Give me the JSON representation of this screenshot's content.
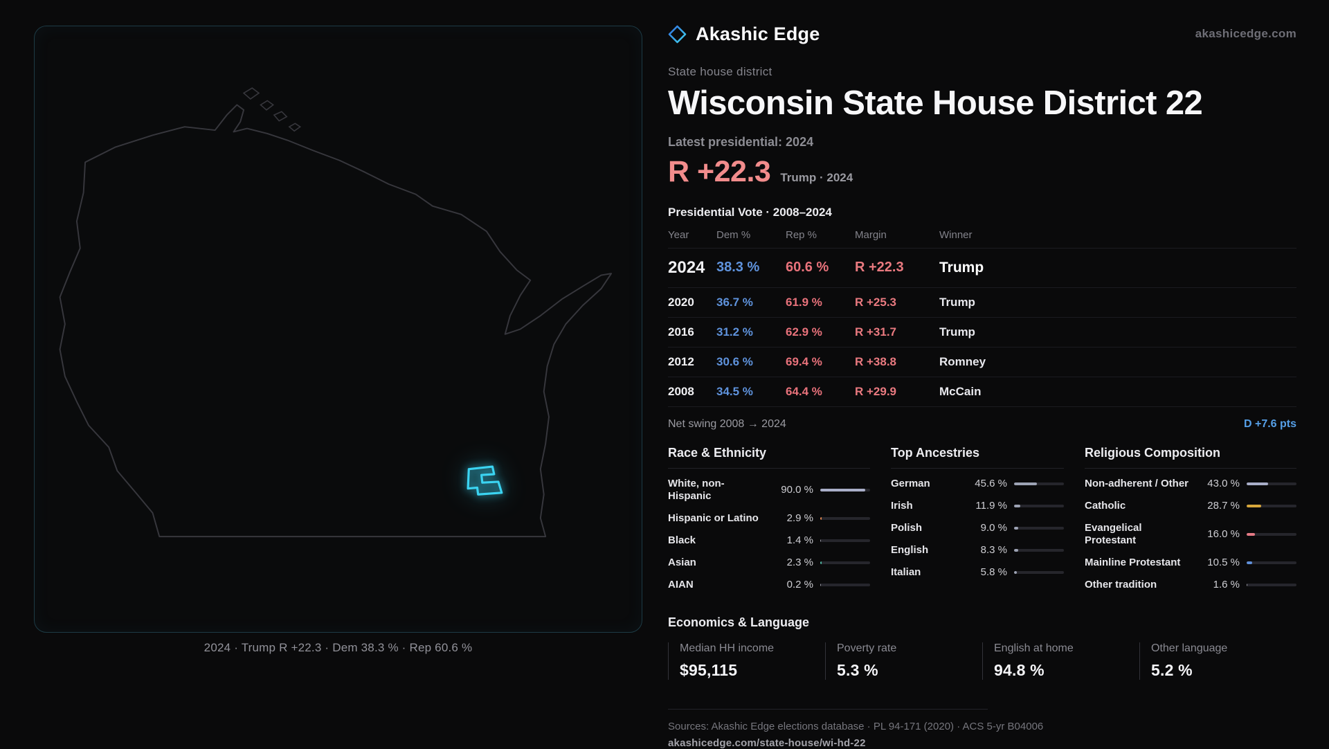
{
  "brand": {
    "name": "Akashic Edge",
    "site": "akashicedge.com"
  },
  "header": {
    "kicker": "State house district",
    "title": "Wisconsin State House District 22",
    "latest_label": "Latest presidential: 2024",
    "headline_margin": "R +22.3",
    "headline_detail": "Trump · 2024"
  },
  "vote_table": {
    "title": "Presidential Vote · 2008–2024",
    "columns": [
      "Year",
      "Dem %",
      "Rep %",
      "Margin",
      "Winner"
    ],
    "rows": [
      {
        "year": "2024",
        "dem": "38.3 %",
        "rep": "60.6 %",
        "margin": "R +22.3",
        "winner": "Trump",
        "highlight": true
      },
      {
        "year": "2020",
        "dem": "36.7 %",
        "rep": "61.9 %",
        "margin": "R +25.3",
        "winner": "Trump",
        "highlight": false
      },
      {
        "year": "2016",
        "dem": "31.2 %",
        "rep": "62.9 %",
        "margin": "R +31.7",
        "winner": "Trump",
        "highlight": false
      },
      {
        "year": "2012",
        "dem": "30.6 %",
        "rep": "69.4 %",
        "margin": "R +38.8",
        "winner": "Romney",
        "highlight": false
      },
      {
        "year": "2008",
        "dem": "34.5 %",
        "rep": "64.4 %",
        "margin": "R +29.9",
        "winner": "McCain",
        "highlight": false
      }
    ]
  },
  "net_swing": {
    "label": "Net swing 2008 → 2024",
    "value": "D +7.6 pts",
    "color": "#56a0e8"
  },
  "demographics": {
    "race": {
      "title": "Race & Ethnicity",
      "rows": [
        {
          "label": "White, non-Hispanic",
          "value": "90.0 %",
          "pct": 90.0,
          "color": "#a9aec8"
        },
        {
          "label": "Hispanic or Latino",
          "value": "2.9 %",
          "pct": 2.9,
          "color": "#e0854e"
        },
        {
          "label": "Black",
          "value": "1.4 %",
          "pct": 1.4,
          "color": "#9d9da8"
        },
        {
          "label": "Asian",
          "value": "2.3 %",
          "pct": 2.3,
          "color": "#4fb8a2"
        },
        {
          "label": "AIAN",
          "value": "0.2 %",
          "pct": 0.2,
          "color": "#9d9da8"
        }
      ]
    },
    "ancestries": {
      "title": "Top Ancestries",
      "rows": [
        {
          "label": "German",
          "value": "45.6 %",
          "pct": 45.6,
          "color": "#9da3b4"
        },
        {
          "label": "Irish",
          "value": "11.9 %",
          "pct": 11.9,
          "color": "#9da3b4"
        },
        {
          "label": "Polish",
          "value": "9.0 %",
          "pct": 9.0,
          "color": "#9da3b4"
        },
        {
          "label": "English",
          "value": "8.3 %",
          "pct": 8.3,
          "color": "#9da3b4"
        },
        {
          "label": "Italian",
          "value": "5.8 %",
          "pct": 5.8,
          "color": "#9da3b4"
        }
      ]
    },
    "religion": {
      "title": "Religious Composition",
      "rows": [
        {
          "label": "Non-adherent / Other",
          "value": "43.0 %",
          "pct": 43.0,
          "color": "#a9aec8"
        },
        {
          "label": "Catholic",
          "value": "28.7 %",
          "pct": 28.7,
          "color": "#d8a73c"
        },
        {
          "label": "Evangelical Protestant",
          "value": "16.0 %",
          "pct": 16.0,
          "color": "#e57a85"
        },
        {
          "label": "Mainline Protestant",
          "value": "10.5 %",
          "pct": 10.5,
          "color": "#5f8fd9"
        },
        {
          "label": "Other tradition",
          "value": "1.6 %",
          "pct": 1.6,
          "color": "#9d9da8"
        }
      ]
    }
  },
  "economics": {
    "title": "Economics & Language",
    "stats": [
      {
        "label": "Median HH income",
        "value": "$95,115"
      },
      {
        "label": "Poverty rate",
        "value": "5.3 %"
      },
      {
        "label": "English at home",
        "value": "94.8 %"
      },
      {
        "label": "Other language",
        "value": "5.2 %"
      }
    ]
  },
  "map": {
    "caption": "2024 · Trump R +22.3 · Dem 38.3 % · Rep 60.6 %",
    "district_color": "#3bd4f2"
  },
  "footer": {
    "sources": "Sources: Akashic Edge elections database · PL 94-171 (2020) · ACS 5-yr B04006",
    "permalink": "akashicedge.com/state-house/wi-hd-22"
  },
  "colors": {
    "dem": "#5f93dd",
    "rep": "#e8727b",
    "margin_red": "#f28c8c",
    "swing_blue": "#56a0e8",
    "district_cyan": "#3bd4f2"
  },
  "chart_data": [
    {
      "type": "table",
      "title": "Presidential Vote · 2008–2024",
      "columns": [
        "Year",
        "Dem %",
        "Rep %",
        "Margin",
        "Winner"
      ],
      "rows": [
        [
          "2024",
          38.3,
          60.6,
          "R +22.3",
          "Trump"
        ],
        [
          "2020",
          36.7,
          61.9,
          "R +25.3",
          "Trump"
        ],
        [
          "2016",
          31.2,
          62.9,
          "R +31.7",
          "Trump"
        ],
        [
          "2012",
          30.6,
          69.4,
          "R +38.8",
          "Romney"
        ],
        [
          "2008",
          34.5,
          64.4,
          "R +29.9",
          "McCain"
        ]
      ],
      "annotations": [
        "Latest presidential: 2024 — R +22.3 Trump",
        "Net swing 2008 → 2024: D +7.6 pts"
      ]
    },
    {
      "type": "bar",
      "title": "Race & Ethnicity",
      "unit": "%",
      "xlim": [
        0,
        100
      ],
      "categories": [
        "White, non-Hispanic",
        "Hispanic or Latino",
        "Black",
        "Asian",
        "AIAN"
      ],
      "values": [
        90.0,
        2.9,
        1.4,
        2.3,
        0.2
      ]
    },
    {
      "type": "bar",
      "title": "Top Ancestries",
      "unit": "%",
      "xlim": [
        0,
        100
      ],
      "categories": [
        "German",
        "Irish",
        "Polish",
        "English",
        "Italian"
      ],
      "values": [
        45.6,
        11.9,
        9.0,
        8.3,
        5.8
      ]
    },
    {
      "type": "bar",
      "title": "Religious Composition",
      "unit": "%",
      "xlim": [
        0,
        100
      ],
      "categories": [
        "Non-adherent / Other",
        "Catholic",
        "Evangelical Protestant",
        "Mainline Protestant",
        "Other tradition"
      ],
      "values": [
        43.0,
        28.7,
        16.0,
        10.5,
        1.6
      ]
    },
    {
      "type": "table",
      "title": "Economics & Language",
      "columns": [
        "Median HH income",
        "Poverty rate",
        "English at home",
        "Other language"
      ],
      "rows": [
        [
          "$95,115",
          "5.3 %",
          "94.8 %",
          "5.2 %"
        ]
      ]
    }
  ]
}
